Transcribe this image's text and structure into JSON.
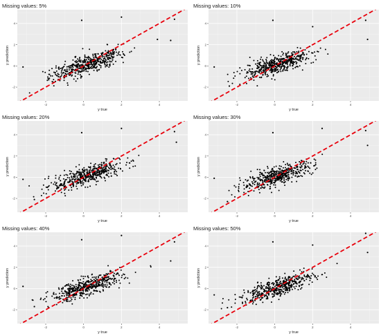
{
  "chart_data": [
    {
      "type": "scatter",
      "title": "Missing values: 5%",
      "xlabel": "y true",
      "ylabel": "y prediction",
      "xlim": [
        -3.5,
        5.5
      ],
      "ylim": [
        -3.3,
        5.3
      ],
      "xticks": [
        "-2",
        "0",
        "2",
        "4"
      ],
      "yticks": [
        "-2",
        "0",
        "2",
        "4"
      ],
      "reference_line": {
        "style": "dashed",
        "color": "#e8000b",
        "slope": 1,
        "intercept": 0
      },
      "points_note": "approx. 500 points, cloud along y=x with slope ~0.55",
      "outliers": [
        [
          -0.1,
          4.3
        ],
        [
          2.0,
          4.6
        ],
        [
          4.8,
          4.4
        ],
        [
          -3.2,
          -0.1
        ],
        [
          4.6,
          2.4
        ],
        [
          3.9,
          2.5
        ]
      ]
    },
    {
      "type": "scatter",
      "title": "Missing values: 10%",
      "xlabel": "y true",
      "ylabel": "y prediction",
      "xlim": [
        -3.5,
        5.5
      ],
      "ylim": [
        -3.3,
        5.3
      ],
      "xticks": [
        "-2",
        "0",
        "2",
        "4"
      ],
      "yticks": [
        "-2",
        "0",
        "2",
        "4"
      ],
      "reference_line": {
        "style": "dashed",
        "color": "#e8000b",
        "slope": 1,
        "intercept": 0
      },
      "points_note": "approx. 500 points, cloud along y=x with slope ~0.55",
      "outliers": [
        [
          -0.1,
          4.3
        ],
        [
          2.0,
          3.7
        ],
        [
          4.8,
          4.3
        ],
        [
          -3.2,
          -0.1
        ],
        [
          4.9,
          2.5
        ],
        [
          -2.4,
          -1.9
        ]
      ]
    },
    {
      "type": "scatter",
      "title": "Missing values: 20%",
      "xlabel": "y true",
      "ylabel": "y prediction",
      "xlim": [
        -3.5,
        5.5
      ],
      "ylim": [
        -3.3,
        5.3
      ],
      "xticks": [
        "-2",
        "0",
        "2",
        "4"
      ],
      "yticks": [
        "-2",
        "0",
        "2",
        "4"
      ],
      "reference_line": {
        "style": "dashed",
        "color": "#e8000b",
        "slope": 1,
        "intercept": 0
      },
      "points_note": "approx. 500 points, cloud along y=x with slope ~0.55",
      "outliers": [
        [
          -0.1,
          4.2
        ],
        [
          2.0,
          4.6
        ],
        [
          4.8,
          4.3
        ],
        [
          -3.2,
          -0.2
        ],
        [
          4.9,
          3.3
        ],
        [
          -2.6,
          -2.1
        ]
      ]
    },
    {
      "type": "scatter",
      "title": "Missing values: 30%",
      "xlabel": "y true",
      "ylabel": "y prediction",
      "xlim": [
        -3.5,
        5.5
      ],
      "ylim": [
        -3.3,
        5.3
      ],
      "xticks": [
        "-2",
        "0",
        "2",
        "4"
      ],
      "yticks": [
        "-2",
        "0",
        "2",
        "4"
      ],
      "reference_line": {
        "style": "dashed",
        "color": "#e8000b",
        "slope": 1,
        "intercept": 0
      },
      "points_note": "approx. 500 points, cloud along y=x with slope ~0.55",
      "outliers": [
        [
          -0.1,
          4.2
        ],
        [
          2.5,
          4.6
        ],
        [
          4.8,
          4.4
        ],
        [
          -3.2,
          -0.1
        ],
        [
          4.9,
          3.0
        ],
        [
          -2.5,
          -2.3
        ]
      ]
    },
    {
      "type": "scatter",
      "title": "Missing values: 40%",
      "xlabel": "y true",
      "ylabel": "y prediction",
      "xlim": [
        -3.5,
        5.5
      ],
      "ylim": [
        -3.3,
        5.3
      ],
      "xticks": [
        "-2",
        "0",
        "2",
        "4"
      ],
      "yticks": [
        "-2",
        "0",
        "2",
        "4"
      ],
      "reference_line": {
        "style": "dashed",
        "color": "#e8000b",
        "slope": 1,
        "intercept": 0
      },
      "points_note": "approx. 500 points, cloud along y=x with slope ~0.55",
      "outliers": [
        [
          -0.1,
          4.6
        ],
        [
          2.0,
          5.0
        ],
        [
          4.8,
          4.4
        ],
        [
          -3.2,
          0.2
        ],
        [
          4.6,
          2.6
        ],
        [
          -2.6,
          -1.7
        ]
      ]
    },
    {
      "type": "scatter",
      "title": "Missing values: 50%",
      "xlabel": "y true",
      "ylabel": "y prediction",
      "xlim": [
        -3.5,
        5.5
      ],
      "ylim": [
        -3.3,
        5.3
      ],
      "xticks": [
        "-2",
        "0",
        "2",
        "4"
      ],
      "yticks": [
        "-2",
        "0",
        "2",
        "4"
      ],
      "reference_line": {
        "style": "dashed",
        "color": "#e8000b",
        "slope": 1,
        "intercept": 0
      },
      "points_note": "approx. 500 points, cloud along y=x with slope ~0.55",
      "outliers": [
        [
          -0.1,
          4.4
        ],
        [
          2.0,
          4.1
        ],
        [
          4.8,
          5.2
        ],
        [
          -3.2,
          -0.6
        ],
        [
          4.9,
          3.4
        ],
        [
          -2.5,
          -1.8
        ]
      ]
    }
  ]
}
